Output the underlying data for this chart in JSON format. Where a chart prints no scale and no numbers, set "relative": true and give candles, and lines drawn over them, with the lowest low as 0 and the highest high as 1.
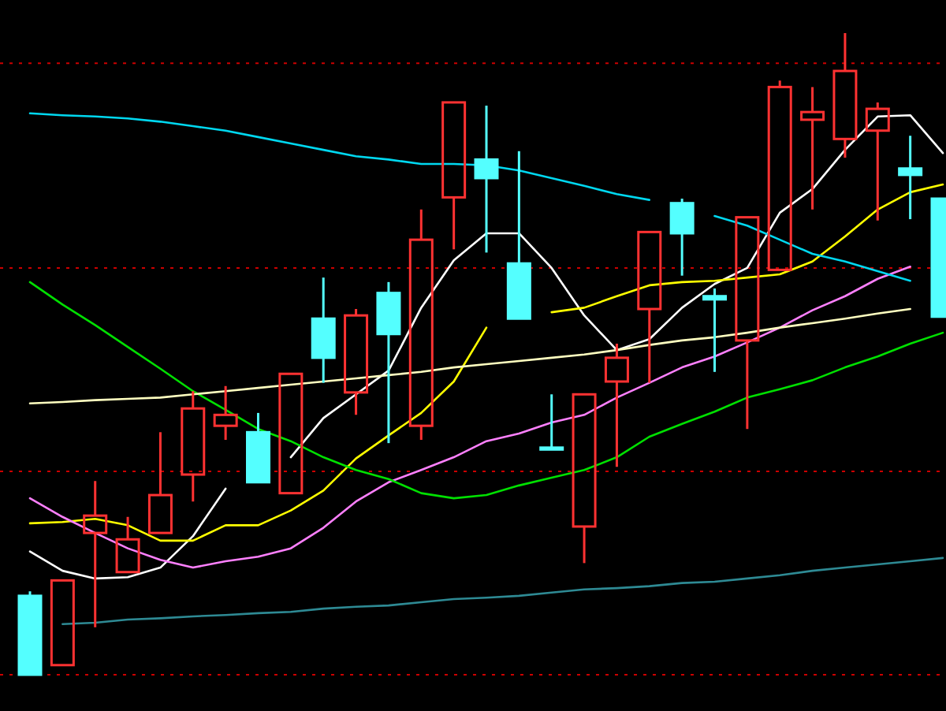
{
  "chart_data": {
    "type": "candlestick",
    "relative": true,
    "categories": [
      null,
      null,
      null,
      null,
      null,
      null,
      null,
      null,
      null,
      null,
      null,
      null,
      null,
      null,
      null,
      null,
      null,
      null,
      null,
      null,
      null,
      null,
      null,
      null,
      null,
      null,
      null,
      null,
      null
    ],
    "ref_lines": [
      {
        "axis": "y",
        "value": 0.953,
        "color": "#cc0000",
        "line_style": "dotted"
      },
      {
        "axis": "y",
        "value": 0.634,
        "color": "#cc0000",
        "line_style": "dotted"
      },
      {
        "axis": "y",
        "value": 0.317,
        "color": "#cc0000",
        "line_style": "dotted"
      },
      {
        "axis": "y",
        "value": 0,
        "color": "#cc0000",
        "line_style": "dotted"
      }
    ],
    "series": [
      {
        "type": "line",
        "color": "#ffffff",
        "values": [
          0.192,
          0.162,
          0.15,
          0.152,
          0.167,
          0.216,
          0.29,
          null,
          0.339,
          0.4,
          0.437,
          0.474,
          0.572,
          0.646,
          0.688,
          0.688,
          0.634,
          0.56,
          0.506,
          0.523,
          0.572,
          0.609,
          0.634,
          0.72,
          0.757,
          0.818,
          0.87,
          0.872,
          0.813
        ]
      },
      {
        "type": "line",
        "color": "#ffff00",
        "values": [
          0.236,
          0.238,
          0.243,
          0.233,
          0.209,
          0.209,
          0.233,
          0.233,
          0.256,
          0.287,
          0.337,
          0.373,
          0.408,
          0.457,
          0.541,
          null,
          0.565,
          0.572,
          0.59,
          0.607,
          0.612,
          0.614,
          0.619,
          0.624,
          0.644,
          0.683,
          0.725,
          0.752,
          0.764
        ]
      },
      {
        "type": "line",
        "color": "#ff80ff",
        "values": [
          0.275,
          0.246,
          0.221,
          0.197,
          0.179,
          0.167,
          0.177,
          0.184,
          0.197,
          0.229,
          0.27,
          0.3,
          0.319,
          0.339,
          0.364,
          0.376,
          0.393,
          0.405,
          0.432,
          0.455,
          0.479,
          0.496,
          0.518,
          0.541,
          0.568,
          0.59,
          0.617,
          0.636,
          null
        ]
      },
      {
        "type": "line",
        "color": "#00e000",
        "values": [
          0.612,
          0.577,
          0.545,
          0.511,
          0.477,
          0.442,
          0.413,
          0.383,
          0.364,
          0.339,
          0.319,
          0.305,
          0.283,
          0.275,
          0.28,
          0.295,
          0.307,
          0.319,
          0.339,
          0.371,
          0.391,
          0.41,
          0.432,
          0.445,
          0.459,
          0.479,
          0.496,
          0.516,
          0.533
        ]
      },
      {
        "type": "line",
        "color": "#ffffc0",
        "values": [
          0.423,
          0.425,
          0.428,
          0.43,
          0.432,
          0.437,
          0.442,
          0.447,
          0.452,
          0.457,
          0.462,
          0.467,
          0.472,
          0.479,
          0.484,
          0.489,
          0.494,
          0.499,
          0.506,
          0.514,
          0.521,
          0.526,
          0.533,
          0.541,
          0.548,
          0.555,
          0.563,
          0.57,
          null
        ]
      },
      {
        "type": "line",
        "color": "#00d8f0",
        "values": [
          0.875,
          0.872,
          0.87,
          0.867,
          0.862,
          0.855,
          0.848,
          0.838,
          0.828,
          0.818,
          0.808,
          0.803,
          0.796,
          0.796,
          0.794,
          0.786,
          0.774,
          0.762,
          0.749,
          0.74,
          null,
          0.715,
          0.7,
          0.678,
          0.656,
          0.644,
          0.629,
          0.614,
          null
        ]
      },
      {
        "type": "line",
        "color": "#2e8a94",
        "values": [
          null,
          0.079,
          0.081,
          0.086,
          0.088,
          0.091,
          0.093,
          0.096,
          0.098,
          0.103,
          0.106,
          0.108,
          0.113,
          0.118,
          0.12,
          0.123,
          0.128,
          0.133,
          0.135,
          0.138,
          0.143,
          0.145,
          0.15,
          0.155,
          0.162,
          0.167,
          0.172,
          0.177,
          0.182
        ]
      }
    ],
    "colors": [
      "#54ffff",
      "#ff3232",
      "#ff3232",
      "#ff3232",
      "#ff3232",
      "#ff3232",
      "#ff3232",
      "#54ffff",
      "#ff3232",
      "#54ffff",
      "#ff3232",
      "#54ffff",
      "#ff3232",
      "#ff3232",
      "#54ffff",
      "#54ffff",
      "#54ffff",
      "#ff3232",
      "#ff3232",
      "#ff3232",
      "#54ffff",
      "#54ffff",
      "#ff3232",
      "#ff3232",
      "#ff3232",
      "#ff3232",
      "#ff3232",
      "#54ffff",
      "#54ffff"
    ],
    "ohlc": [
      [
        0.123,
        0.13,
        0,
        0
      ],
      [
        0.015,
        0.147,
        0.015,
        0.147
      ],
      [
        0.221,
        0.302,
        0.074,
        0.248
      ],
      [
        0.16,
        0.246,
        0.16,
        0.211
      ],
      [
        0.221,
        0.378,
        0.221,
        0.28
      ],
      [
        0.312,
        0.442,
        0.27,
        0.415
      ],
      [
        0.388,
        0.45,
        0.366,
        0.405
      ],
      [
        0.378,
        0.408,
        0.3,
        0.3
      ],
      [
        0.283,
        0.469,
        0.283,
        0.469
      ],
      [
        0.555,
        0.619,
        0.455,
        0.494
      ],
      [
        0.44,
        0.57,
        0.405,
        0.56
      ],
      [
        0.595,
        0.612,
        0.361,
        0.531
      ],
      [
        0.388,
        0.725,
        0.366,
        0.678
      ],
      [
        0.744,
        0.892,
        0.663,
        0.892
      ],
      [
        0.803,
        0.887,
        0.658,
        0.774
      ],
      [
        0.641,
        0.816,
        0.555,
        0.555
      ],
      [
        0.354,
        0.437,
        0.351,
        0.351
      ],
      [
        0.231,
        0.437,
        0.174,
        0.437
      ],
      [
        0.457,
        0.516,
        0.324,
        0.494
      ],
      [
        0.57,
        0.69,
        0.455,
        0.69
      ],
      [
        0.735,
        0.742,
        0.622,
        0.688
      ],
      [
        0.59,
        0.602,
        0.472,
        0.585
      ],
      [
        0.521,
        0.713,
        0.383,
        0.713
      ],
      [
        0.631,
        0.926,
        0.631,
        0.916
      ],
      [
        0.865,
        0.916,
        0.725,
        0.877
      ],
      [
        0.835,
        1,
        0.806,
        0.941
      ],
      [
        0.848,
        0.892,
        0.708,
        0.882
      ],
      [
        0.789,
        0.84,
        0.71,
        0.779
      ],
      [
        0.742,
        0.742,
        0.558,
        0.558
      ]
    ]
  }
}
